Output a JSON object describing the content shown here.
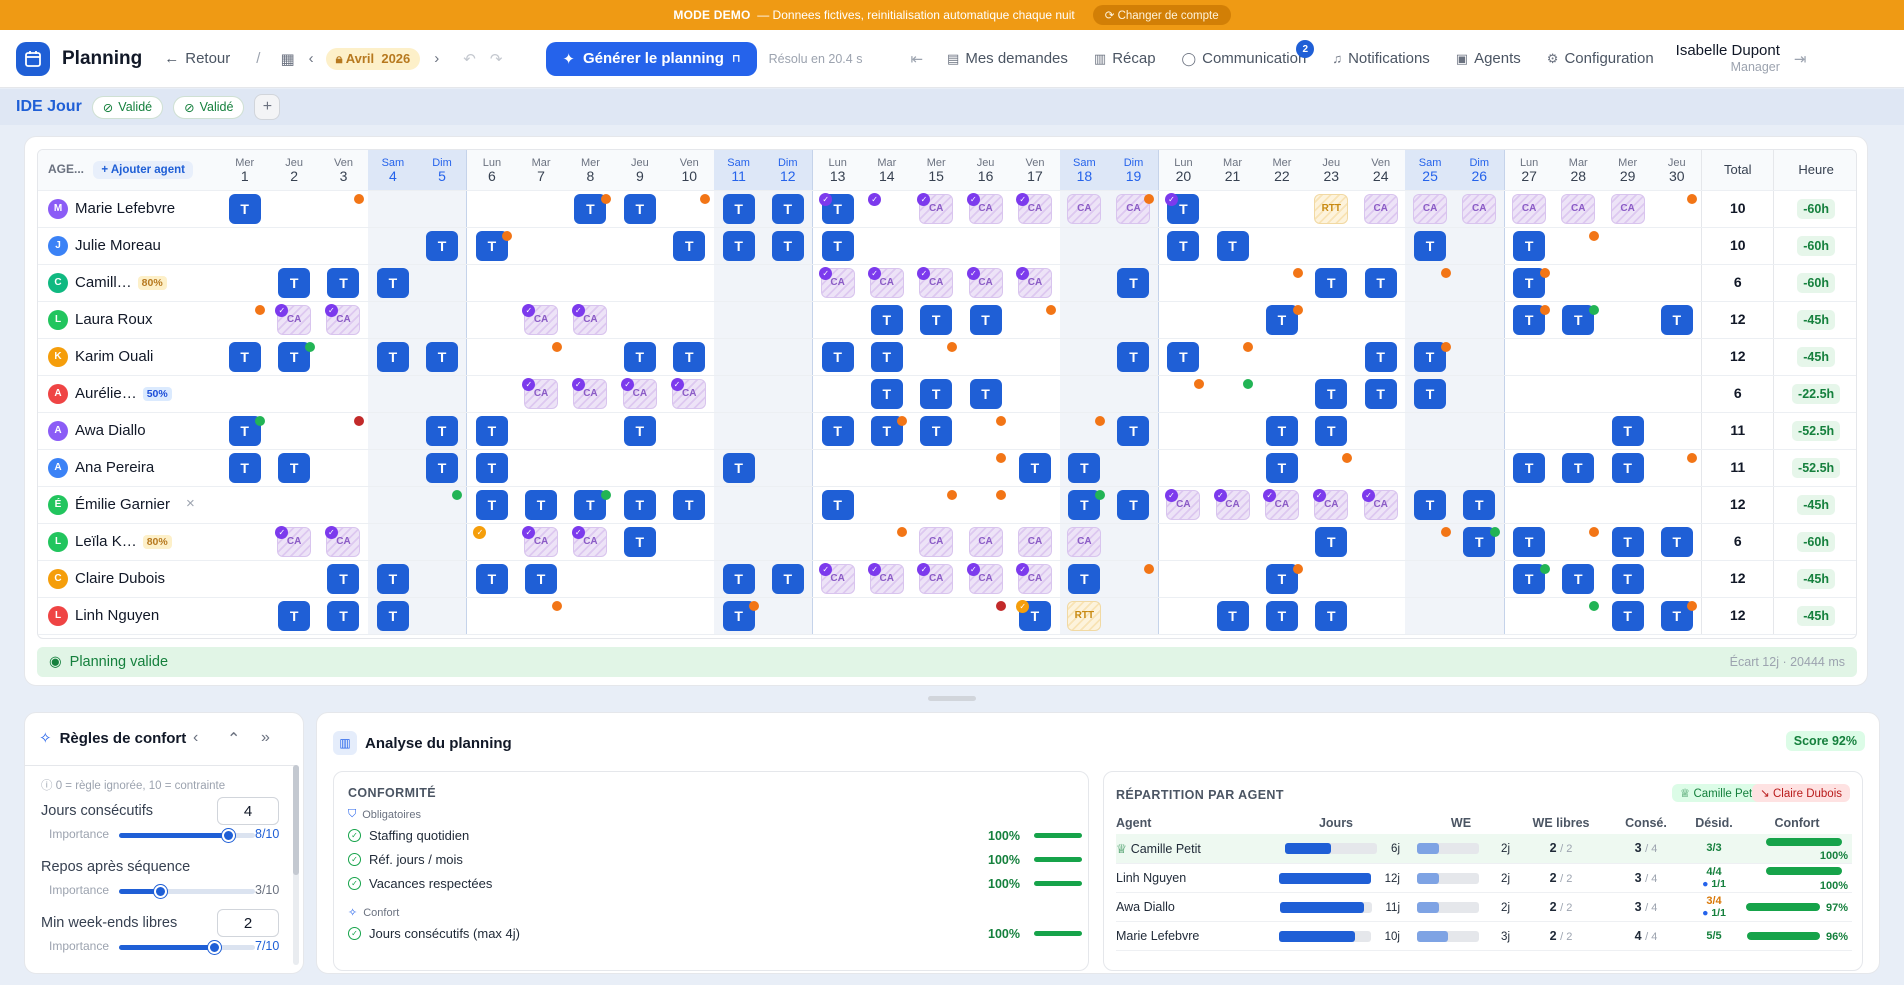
{
  "demo": {
    "mode": "MODE DEMO",
    "text": "— Donnees fictives, reinitialisation automatique chaque nuit",
    "switch": "Changer de compte"
  },
  "topbar": {
    "app": "Planning",
    "back": "Retour",
    "sep": "/",
    "month": "Avril",
    "year": "2026",
    "generate": "Générer le planning",
    "resolved": "Résolu en 20.4 s",
    "nav": [
      {
        "label": "Mes demandes",
        "icon": "clipboard-icon"
      },
      {
        "label": "Récap",
        "icon": "bar-chart-icon"
      },
      {
        "label": "Communication",
        "icon": "chat-icon",
        "badge": "2"
      },
      {
        "label": "Notifications",
        "icon": "bell-icon"
      },
      {
        "label": "Agents",
        "icon": "id-badge-icon"
      },
      {
        "label": "Configuration",
        "icon": "gear-icon"
      }
    ],
    "user": "Isabelle Dupont",
    "role": "Manager"
  },
  "subbar": {
    "team": "IDE Jour",
    "pills": [
      "Validé",
      "Validé"
    ]
  },
  "grid": {
    "agent_header": "AGE...",
    "add_agent": "Ajouter agent",
    "total_header": "Total",
    "heure_header": "Heure",
    "days": [
      [
        "Mer",
        "1"
      ],
      [
        "Jeu",
        "2"
      ],
      [
        "Ven",
        "3"
      ],
      [
        "Sam",
        "4"
      ],
      [
        "Dim",
        "5"
      ],
      [
        "Lun",
        "6"
      ],
      [
        "Mar",
        "7"
      ],
      [
        "Mer",
        "8"
      ],
      [
        "Jeu",
        "9"
      ],
      [
        "Ven",
        "10"
      ],
      [
        "Sam",
        "11"
      ],
      [
        "Dim",
        "12"
      ],
      [
        "Lun",
        "13"
      ],
      [
        "Mar",
        "14"
      ],
      [
        "Mer",
        "15"
      ],
      [
        "Jeu",
        "16"
      ],
      [
        "Ven",
        "17"
      ],
      [
        "Sam",
        "18"
      ],
      [
        "Dim",
        "19"
      ],
      [
        "Lun",
        "20"
      ],
      [
        "Mar",
        "21"
      ],
      [
        "Mer",
        "22"
      ],
      [
        "Jeu",
        "23"
      ],
      [
        "Ven",
        "24"
      ],
      [
        "Sam",
        "25"
      ],
      [
        "Dim",
        "26"
      ],
      [
        "Lun",
        "27"
      ],
      [
        "Mar",
        "28"
      ],
      [
        "Mer",
        "29"
      ],
      [
        "Jeu",
        "30"
      ]
    ],
    "rows": [
      {
        "name": "Marie Lefebvre",
        "initial": "M",
        "color": "#8b5cf6",
        "total": "10",
        "heure": "-60h",
        "cells": "T_..._.TT_TTT_CCCCCT._RCCCCCC..._",
        "dots": {
          "2": "do",
          "7": "do",
          "9": "do",
          "18": "do",
          "29": "do"
        },
        "checks": [
          12,
          13,
          14,
          15,
          16,
          19
        ]
      },
      {
        "name": "Julie Moreau",
        "initial": "J",
        "color": "#3b82f6",
        "total": "10",
        "heure": "-60h",
        "cells": "....TT...TTTT......TT...T.T....",
        "dots": {
          "5": "do",
          "27": "do"
        },
        "checks": []
      },
      {
        "name": "Camill…",
        "initial": "C",
        "color": "#10b981",
        "pct": "80%",
        "pctc": "#fdf0c9",
        "pctt": "#b7791f",
        "total": "6",
        "heure": "-60h",
        "cells": ".TTT........CCCCC.T...TT..T....",
        "dots": {
          "21": "do",
          "24": "do",
          "26": "do"
        },
        "checks": [
          12,
          13,
          14,
          15,
          16
        ]
      },
      {
        "name": "Laura Roux",
        "initial": "L",
        "color": "#22c55e",
        "total": "12",
        "heure": "-45h",
        "cells": ".CC...CC.....TTT.....T....TT.TTT",
        "dots": {
          "0": "do",
          "16": "do",
          "21": "do",
          "26": "do",
          "27": "dg"
        },
        "checks": [
          1,
          2,
          6,
          7
        ]
      },
      {
        "name": "Karim Ouali",
        "initial": "K",
        "color": "#f59e0b",
        "total": "12",
        "heure": "-45h",
        "cells": "TT.TT...TT..TT....TT...TT.....",
        "dots": {
          "1": "dg",
          "6": "do",
          "14": "do",
          "20": "do",
          "24": "do"
        },
        "checks": []
      },
      {
        "name": "Aurélie…",
        "initial": "A",
        "color": "#ef4444",
        "pct": "50%",
        "pctc": "#dbeafe",
        "pctt": "#1d4ed8",
        "total": "6",
        "heure": "-22.5h",
        "cells": "......CCCC...TTT......TTT......",
        "dots": {
          "19": "do",
          "20": "dg"
        },
        "checks": [
          6,
          7,
          8,
          9
        ]
      },
      {
        "name": "Awa Diallo",
        "initial": "A",
        "color": "#8b5cf6",
        "total": "11",
        "heure": "-52.5h",
        "cells": "T...TT..T...TTT...T..TT.....T.",
        "dots": {
          "0": "dg",
          "2": "dr",
          "13": "do",
          "15": "do",
          "17": "do"
        },
        "checks": []
      },
      {
        "name": "Ana Pereira",
        "initial": "A",
        "color": "#3b82f6",
        "total": "11",
        "heure": "-52.5h",
        "cells": "TT..TT....T.....TT...T....TTT..",
        "dots": {
          "15": "do",
          "22": "do",
          "29": "do"
        },
        "checks": []
      },
      {
        "name": "Émilie Garnier",
        "initial": "É",
        "color": "#22c55e",
        "total": "12",
        "heure": "-45h",
        "cells": ".....TTTTT..T....TTCCCCCTT.....",
        "dots": {
          "4": "dg",
          "7": "dg",
          "14": "do",
          "15": "do",
          "17": "dg"
        },
        "checks": [
          19,
          20,
          21,
          22,
          23
        ],
        "x": "×"
      },
      {
        "name": "Leïla K…",
        "initial": "L",
        "color": "#22c55e",
        "pct": "80%",
        "pctc": "#fdf0c9",
        "pctt": "#b7791f",
        "total": "6",
        "heure": "-60h",
        "cells": ".CC...CCT.....CCCC....T..TT.TT.",
        "dots": {
          "13": "do",
          "24": "do",
          "25": "dg",
          "27": "do"
        },
        "checks": [
          1,
          2,
          6,
          7
        ],
        "ochecks": [
          5
        ]
      },
      {
        "name": "Claire Dubois",
        "initial": "C",
        "color": "#f59e0b",
        "total": "12",
        "heure": "-45h",
        "cells": "..TT.TT...TTCCCCCT...T....TTT.",
        "dots": {
          "18": "do",
          "21": "do",
          "26": "dg"
        },
        "checks": [
          12,
          13,
          14,
          15,
          16
        ]
      },
      {
        "name": "Linh Nguyen",
        "initial": "L",
        "color": "#ef4444",
        "total": "12",
        "heure": "-45h",
        "cells": ".TTT......T.....TR..TTT.....TT..",
        "dots": {
          "6": "do",
          "10": "do",
          "15": "dr",
          "27": "dg",
          "29": "do"
        },
        "checks": [],
        "ochecks": [
          16
        ]
      }
    ]
  },
  "status": {
    "label": "Planning valide",
    "right": "Écart 12j · 20444 ms"
  },
  "confort": {
    "title": "Règles de confort",
    "hint": "0 = règle ignorée, 10 = contrainte",
    "importance": "Importance",
    "fields": [
      {
        "label": "Jours consécutifs",
        "value": "4",
        "imp": "8/10",
        "level": 0.8
      },
      {
        "label": "Repos après séquence",
        "value": "",
        "imp": "3/10",
        "level": 0.3
      },
      {
        "label": "Min week-ends libres",
        "value": "2",
        "imp": "7/10",
        "level": 0.7
      }
    ]
  },
  "analyse": {
    "title": "Analyse du planning",
    "score": "Score 92%",
    "conformite": "CONFORMITÉ",
    "oblig": "Obligatoires",
    "confort": "Confort",
    "rules": [
      {
        "label": "Staffing quotidien",
        "pct": "100%"
      },
      {
        "label": "Réf. jours / mois",
        "pct": "100%"
      },
      {
        "label": "Vacances respectées",
        "pct": "100%"
      }
    ],
    "crules": [
      {
        "label": "Jours consécutifs (max 4j)",
        "pct": "100%"
      }
    ],
    "repartition": "RÉPARTITION PAR AGENT",
    "best": "Camille Petit",
    "worst": "Claire Dubois",
    "cols": [
      "Agent",
      "Jours",
      "WE",
      "WE libres",
      "Consé.",
      "Désid.",
      "Confort"
    ],
    "agents": [
      {
        "name": "Camille Petit",
        "jours": "6j",
        "jfill": 0.5,
        "we": "2j",
        "wefill": 0.35,
        "libres": "2",
        "lmax": "/ 2",
        "conse": "3",
        "cmax": "/ 4",
        "desid": "3/3",
        "confort": "100%",
        "cfill": 1.0
      },
      {
        "name": "Linh Nguyen",
        "jours": "12j",
        "jfill": 1.0,
        "we": "2j",
        "wefill": 0.35,
        "libres": "2",
        "lmax": "/ 2",
        "conse": "3",
        "cmax": "/ 4",
        "desid": "4/4",
        "desid2": "1/1",
        "confort": "100%",
        "cfill": 1.0
      },
      {
        "name": "Awa Diallo",
        "jours": "11j",
        "jfill": 0.92,
        "we": "2j",
        "wefill": 0.35,
        "libres": "2",
        "lmax": "/ 2",
        "conse": "3",
        "cmax": "/ 4",
        "desid": "3/4",
        "desid2": "1/1",
        "confort": "97%",
        "cfill": 0.97
      },
      {
        "name": "Marie Lefebvre",
        "jours": "10j",
        "jfill": 0.83,
        "we": "3j",
        "wefill": 0.5,
        "libres": "2",
        "lmax": "/ 2",
        "conse": "4",
        "cmax": "/ 4",
        "desid": "5/5",
        "confort": "96%",
        "cfill": 0.96
      }
    ]
  }
}
